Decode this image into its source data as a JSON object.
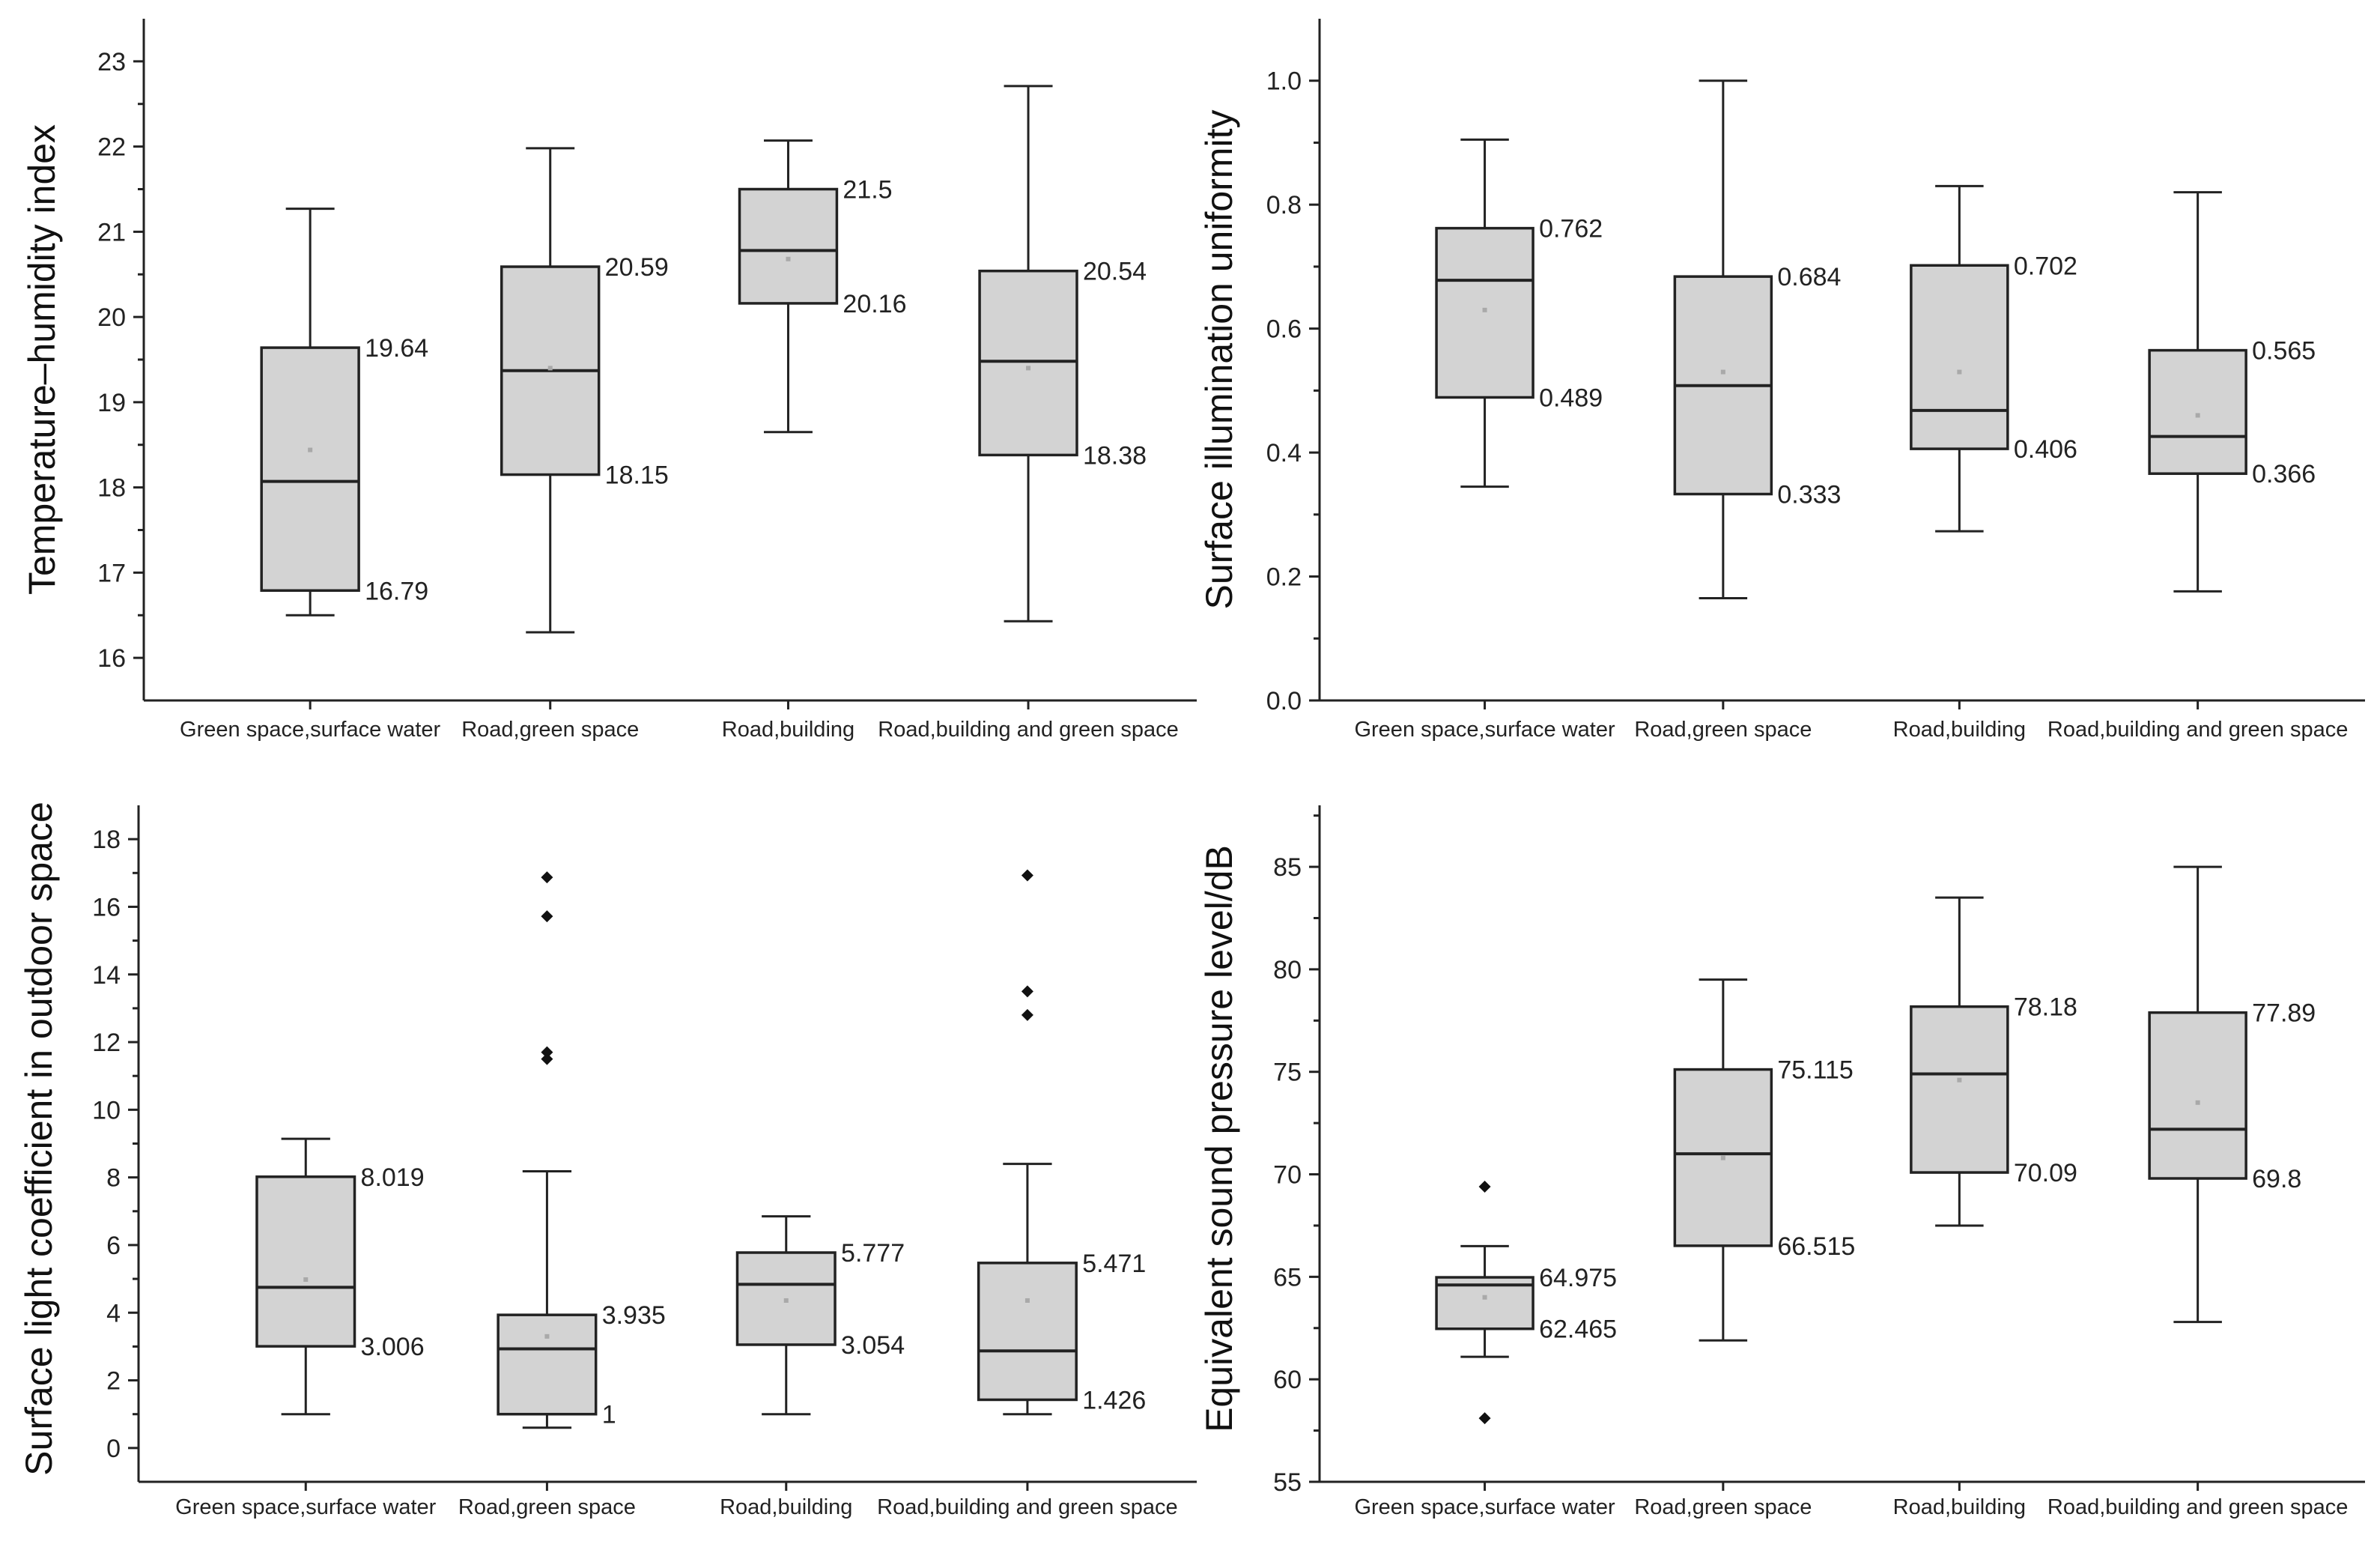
{
  "colors": {
    "box_fill": "#d3d3d3",
    "stroke": "#222222",
    "mean": "#a9a9a9",
    "outlier": "#111111"
  },
  "chart_data": [
    {
      "type": "box",
      "ylabel": "Temperature–humidity index",
      "ylim": [
        15.5,
        23.5
      ],
      "yticks": [
        16,
        17,
        18,
        19,
        20,
        21,
        22,
        23
      ],
      "categories": [
        "Green space,surface water",
        "Road,green space",
        "Road,building",
        "Road,building and green space"
      ],
      "boxes": [
        {
          "whisker_low": 16.5,
          "q1": 16.79,
          "median": 18.07,
          "q3": 19.64,
          "whisker_high": 21.27,
          "mean": 18.44,
          "outliers": [],
          "q1_label": "16.79",
          "q3_label": "19.64"
        },
        {
          "whisker_low": 16.3,
          "q1": 18.15,
          "median": 19.37,
          "q3": 20.59,
          "whisker_high": 21.98,
          "mean": 19.4,
          "outliers": [],
          "q1_label": "18.15",
          "q3_label": "20.59"
        },
        {
          "whisker_low": 18.65,
          "q1": 20.16,
          "median": 20.78,
          "q3": 21.5,
          "whisker_high": 22.07,
          "mean": 20.68,
          "outliers": [],
          "q1_label": "20.16",
          "q3_label": "21.5"
        },
        {
          "whisker_low": 16.43,
          "q1": 18.38,
          "median": 19.48,
          "q3": 20.54,
          "whisker_high": 22.71,
          "mean": 19.4,
          "outliers": [],
          "q1_label": "18.38",
          "q3_label": "20.54"
        }
      ]
    },
    {
      "type": "box",
      "ylabel": "Surface illumination uniformity",
      "ylim": [
        0.0,
        1.1
      ],
      "yticks": [
        "0.0",
        "0.2",
        "0.4",
        "0.6",
        "0.8",
        "1.0"
      ],
      "categories": [
        "Green space,surface water",
        "Road,green space",
        "Road,building",
        "Road,building and green space"
      ],
      "boxes": [
        {
          "whisker_low": 0.345,
          "q1": 0.489,
          "median": 0.678,
          "q3": 0.762,
          "whisker_high": 0.905,
          "mean": 0.63,
          "outliers": [],
          "q1_label": "0.489",
          "q3_label": "0.762"
        },
        {
          "whisker_low": 0.165,
          "q1": 0.333,
          "median": 0.508,
          "q3": 0.684,
          "whisker_high": 1.0,
          "mean": 0.53,
          "outliers": [],
          "q1_label": "0.333",
          "q3_label": "0.684"
        },
        {
          "whisker_low": 0.273,
          "q1": 0.406,
          "median": 0.468,
          "q3": 0.702,
          "whisker_high": 0.83,
          "mean": 0.53,
          "outliers": [],
          "q1_label": "0.406",
          "q3_label": "0.702"
        },
        {
          "whisker_low": 0.176,
          "q1": 0.366,
          "median": 0.426,
          "q3": 0.565,
          "whisker_high": 0.82,
          "mean": 0.46,
          "outliers": [],
          "q1_label": "0.366",
          "q3_label": "0.565"
        }
      ]
    },
    {
      "type": "box",
      "ylabel": "Surface light coefficient in outdoor space",
      "ylim": [
        -1.0,
        19.0
      ],
      "yticks": [
        0,
        2,
        4,
        6,
        8,
        10,
        12,
        14,
        16,
        18
      ],
      "categories": [
        "Green space,surface water",
        "Road,green space",
        "Road,building",
        "Road,building and green space"
      ],
      "boxes": [
        {
          "whisker_low": 1.0,
          "q1": 3.006,
          "median": 4.75,
          "q3": 8.019,
          "whisker_high": 9.14,
          "mean": 4.98,
          "outliers": [],
          "q1_label": "3.006",
          "q3_label": "8.019"
        },
        {
          "whisker_low": 0.6,
          "q1": 1.0,
          "median": 2.93,
          "q3": 3.935,
          "whisker_high": 8.18,
          "mean": 3.3,
          "outliers": [
            11.5,
            11.7,
            15.72,
            16.87
          ],
          "q1_label": "1",
          "q3_label": "3.935"
        },
        {
          "whisker_low": 1.0,
          "q1": 3.054,
          "median": 4.84,
          "q3": 5.777,
          "whisker_high": 6.85,
          "mean": 4.36,
          "outliers": [],
          "q1_label": "3.054",
          "q3_label": "5.777"
        },
        {
          "whisker_low": 1.0,
          "q1": 1.426,
          "median": 2.87,
          "q3": 5.471,
          "whisker_high": 8.4,
          "mean": 4.36,
          "outliers": [
            12.8,
            13.5,
            16.93
          ],
          "q1_label": "1.426",
          "q3_label": "5.471"
        }
      ]
    },
    {
      "type": "box",
      "ylabel": "Equivalent sound pressure level/dB",
      "ylim": [
        55,
        88
      ],
      "yticks": [
        55,
        60,
        65,
        70,
        75,
        80,
        85
      ],
      "categories": [
        "Green space,surface water",
        "Road,green space",
        "Road,building",
        "Road,building and green space"
      ],
      "boxes": [
        {
          "whisker_low": 61.1,
          "q1": 62.465,
          "median": 64.6,
          "q3": 64.975,
          "whisker_high": 66.5,
          "mean": 64.0,
          "outliers": [
            58.1,
            69.4
          ],
          "q1_label": "62.465",
          "q3_label": "64.975"
        },
        {
          "whisker_low": 61.9,
          "q1": 66.515,
          "median": 71.0,
          "q3": 75.115,
          "whisker_high": 79.5,
          "mean": 70.8,
          "outliers": [],
          "q1_label": "66.515",
          "q3_label": "75.115"
        },
        {
          "whisker_low": 67.5,
          "q1": 70.09,
          "median": 74.9,
          "q3": 78.18,
          "whisker_high": 83.5,
          "mean": 74.6,
          "outliers": [],
          "q1_label": "70.09",
          "q3_label": "78.18"
        },
        {
          "whisker_low": 62.8,
          "q1": 69.8,
          "median": 72.2,
          "q3": 77.89,
          "whisker_high": 85.0,
          "mean": 73.5,
          "outliers": [],
          "q1_label": "69.8",
          "q3_label": "77.89"
        }
      ]
    }
  ]
}
